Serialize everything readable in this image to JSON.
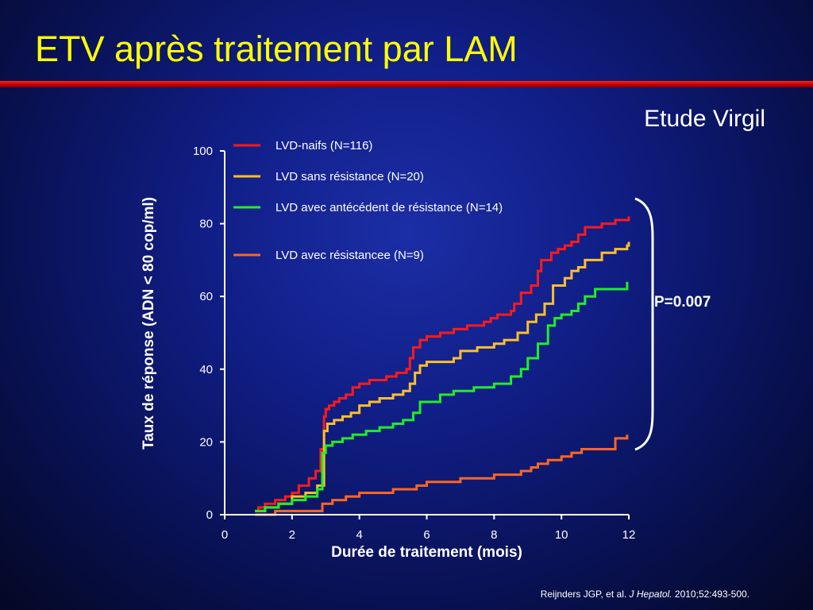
{
  "slide": {
    "title": "ETV après traitement par LAM",
    "subtitle": "Etude Virgil",
    "p_value": "P=0.007",
    "citation": {
      "authors": "Reijnders JGP, et al. ",
      "journal": "J Hepatol.",
      "details": " 2010;52:493-500."
    }
  },
  "colors": {
    "title": "#ffff00",
    "rule": "#d00000",
    "axis": "#ffffff"
  },
  "chart_data": {
    "type": "line",
    "step": true,
    "title": "",
    "xlabel": "Durée de traitement (mois)",
    "ylabel": "Taux de réponse (ADN < 80 cop/ml)",
    "xlim": [
      0,
      12
    ],
    "ylim": [
      0,
      100
    ],
    "xticks": [
      0,
      2,
      4,
      6,
      8,
      10,
      12
    ],
    "yticks": [
      0,
      20,
      40,
      60,
      80,
      100
    ],
    "grid": false,
    "legend": "top-left",
    "series": [
      {
        "name": "LVD-naifs (N=116)",
        "color": "#ff1a1a",
        "x": [
          0.9,
          1.0,
          1.2,
          1.5,
          1.8,
          2.0,
          2.2,
          2.5,
          2.7,
          2.85,
          2.95,
          3.0,
          3.1,
          3.25,
          3.4,
          3.6,
          3.8,
          4.0,
          4.3,
          4.5,
          4.8,
          5.1,
          5.4,
          5.5,
          5.6,
          5.8,
          6.0,
          6.4,
          6.8,
          7.2,
          7.7,
          7.9,
          8.1,
          8.5,
          8.6,
          8.8,
          9.1,
          9.3,
          9.4,
          9.7,
          9.9,
          10.1,
          10.3,
          10.5,
          10.7,
          11.2,
          11.6,
          11.9,
          12.0
        ],
        "values": [
          1,
          2,
          3,
          4,
          5,
          6,
          8,
          10,
          12,
          18,
          27,
          29,
          30,
          31,
          32,
          33,
          35,
          36,
          37,
          37,
          38,
          39,
          40,
          43,
          46,
          48,
          49,
          50,
          51,
          52,
          53,
          54,
          55,
          56,
          58,
          61,
          63,
          67,
          70,
          72,
          73,
          74,
          75,
          77,
          79,
          80,
          81,
          81,
          82
        ]
      },
      {
        "name": "LVD sans résistance (N=20)",
        "color": "#ffbf2a",
        "x": [
          0.9,
          1.2,
          1.6,
          2.0,
          2.4,
          2.75,
          2.95,
          3.05,
          3.25,
          3.5,
          3.75,
          4.0,
          4.3,
          4.6,
          5.0,
          5.3,
          5.5,
          5.65,
          5.8,
          6.0,
          6.8,
          7.0,
          7.5,
          8.0,
          8.3,
          8.7,
          9.0,
          9.25,
          9.5,
          9.75,
          10.1,
          10.3,
          10.5,
          10.7,
          11.2,
          11.6,
          11.95,
          12.0
        ],
        "values": [
          1,
          2,
          3,
          5,
          6,
          8,
          23,
          25,
          26,
          27,
          28,
          30,
          31,
          32,
          33,
          34,
          36,
          39,
          41,
          42,
          43,
          45,
          46,
          47,
          48,
          50,
          53,
          55,
          58,
          63,
          65,
          67,
          68,
          70,
          72,
          73,
          74,
          75
        ]
      },
      {
        "name": "LVD avec antécédent de résistance (N=14)",
        "color": "#22ee22",
        "x": [
          0.9,
          1.2,
          1.6,
          2.0,
          2.4,
          2.75,
          2.9,
          3.0,
          3.2,
          3.5,
          3.8,
          4.2,
          4.6,
          5.0,
          5.3,
          5.6,
          5.8,
          6.4,
          6.8,
          7.4,
          8.0,
          8.5,
          8.8,
          9.0,
          9.3,
          9.6,
          9.8,
          10.0,
          10.3,
          10.5,
          10.7,
          11.0,
          11.6,
          11.95
        ],
        "values": [
          1,
          2,
          3,
          4,
          5,
          7,
          17,
          19,
          20,
          21,
          22,
          23,
          24,
          25,
          26,
          28,
          31,
          33,
          34,
          35,
          36,
          38,
          40,
          43,
          47,
          52,
          54,
          55,
          56,
          58,
          60,
          62,
          62,
          64
        ]
      },
      {
        "name": "LVD avec résistancee (N=9)",
        "color": "#ff6622",
        "x": [
          0.9,
          1.5,
          2.2,
          2.9,
          3.2,
          3.6,
          4.0,
          5.0,
          5.7,
          6.0,
          6.5,
          7.0,
          7.5,
          8.0,
          8.5,
          8.8,
          9.1,
          9.3,
          9.6,
          10.0,
          10.3,
          10.6,
          11.6,
          11.95
        ],
        "values": [
          0,
          1,
          1,
          3,
          4,
          5,
          6,
          7,
          8,
          9,
          9,
          10,
          10,
          11,
          11,
          12,
          13,
          14,
          15,
          16,
          17,
          18,
          21,
          22
        ]
      }
    ]
  }
}
